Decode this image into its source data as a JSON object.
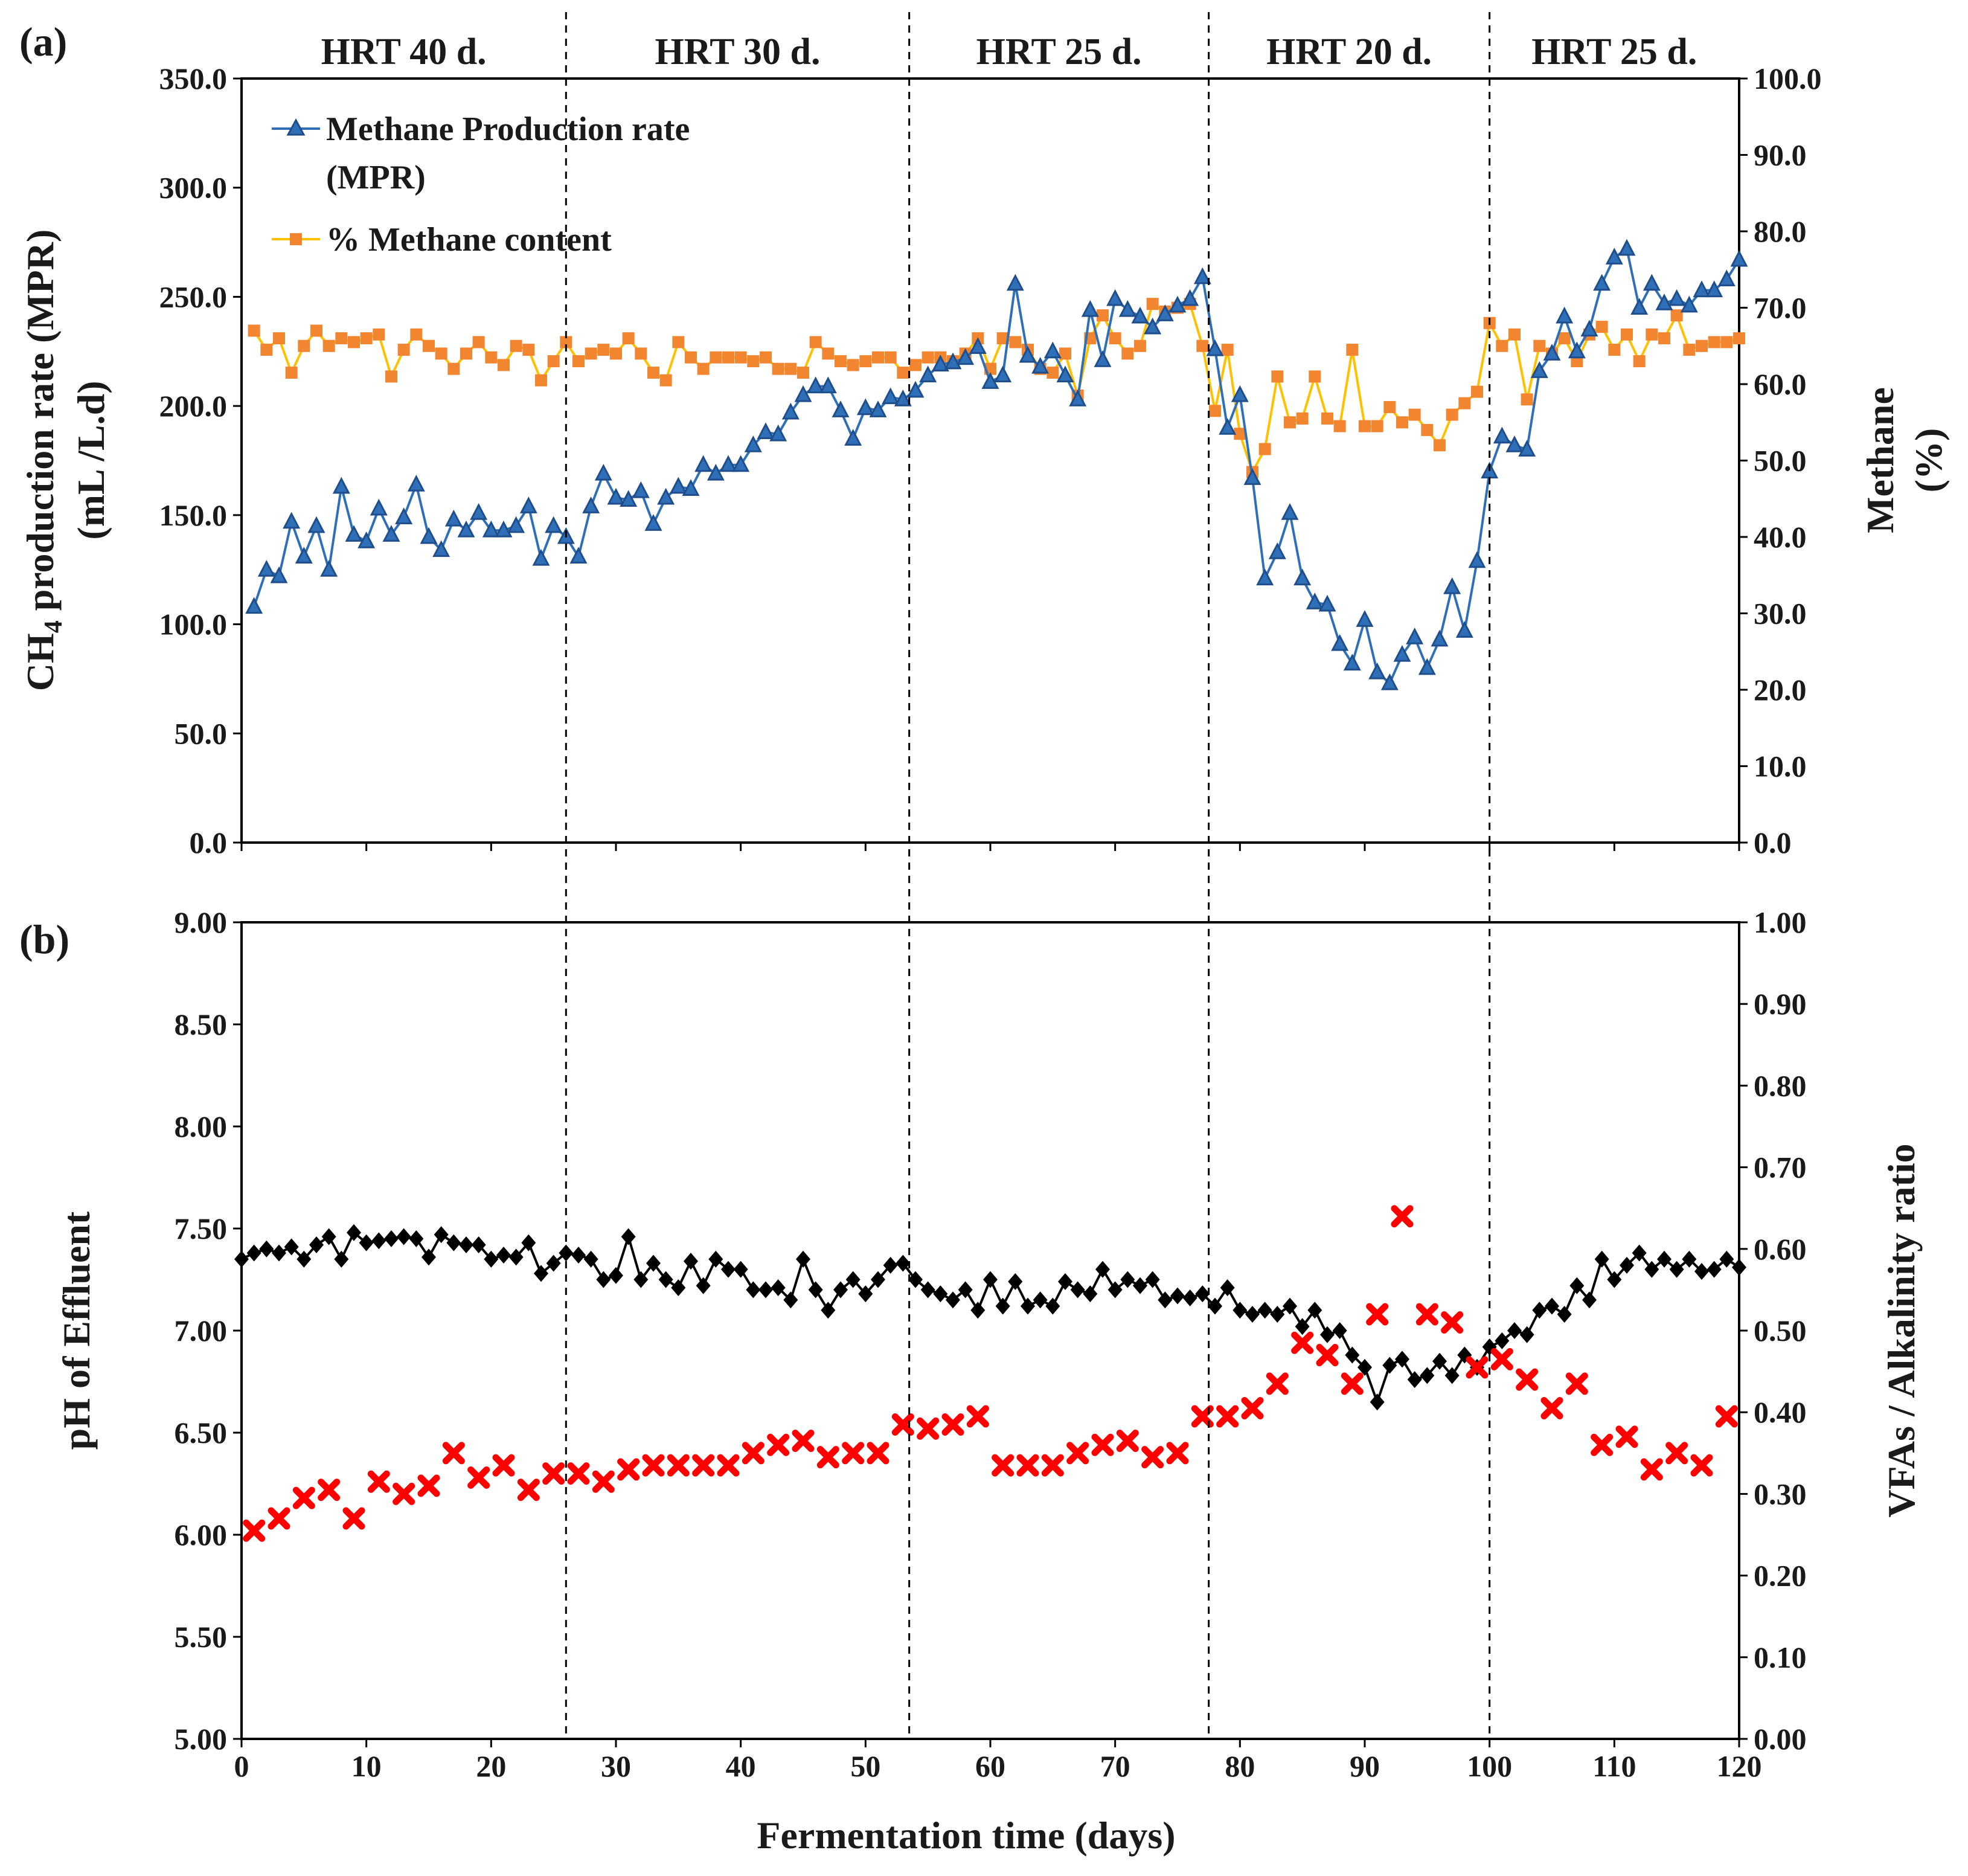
{
  "figure": {
    "shared_xlabel": "Fermentation time (days)",
    "x_ticks": [
      "0",
      "10",
      "20",
      "30",
      "40",
      "50",
      "60",
      "70",
      "80",
      "90",
      "100",
      "110",
      "120"
    ]
  },
  "hrt_periods": [
    {
      "label": "HRT 40 d.",
      "start": 0,
      "end": 26
    },
    {
      "label": "HRT 30 d.",
      "start": 26,
      "end": 53.5
    },
    {
      "label": "HRT 25 d.",
      "start": 53.5,
      "end": 77.5
    },
    {
      "label": "HRT 20 d.",
      "start": 77.5,
      "end": 100
    },
    {
      "label": "HRT 25 d.",
      "start": 100,
      "end": 120
    }
  ],
  "colors": {
    "mpr": "#2e6fb8",
    "mpr_marker": "#1f4e8a",
    "methane_line": "#ffc000",
    "methane_marker": "#f28530",
    "ph": "#000000",
    "vfa": "#ff0000"
  },
  "chart_data": [
    {
      "panel": "(a)",
      "type": "line",
      "xlabel": "Fermentation time (days)",
      "ylabel_left_main": "CH",
      "ylabel_left_sub": "4",
      "ylabel_left_rest": " production rate (MPR)",
      "ylabel_left_line2": "(mL /L.d)",
      "ylabel_right_line1": "Methane",
      "ylabel_right_line2": "(%)",
      "xlim": [
        0,
        120
      ],
      "ylim_left": [
        0,
        350
      ],
      "ylim_right": [
        0,
        100
      ],
      "yticks_left": [
        "0.0",
        "50.0",
        "100.0",
        "150.0",
        "200.0",
        "250.0",
        "300.0",
        "350.0"
      ],
      "yticks_right": [
        "0.0",
        "10.0",
        "20.0",
        "30.0",
        "40.0",
        "50.0",
        "60.0",
        "70.0",
        "80.0",
        "90.0",
        "100.0"
      ],
      "legend": {
        "position": "top-left",
        "entries": [
          "Methane Production rate",
          "(MPR)",
          "% Methane content"
        ]
      },
      "series": [
        {
          "name": "Methane Production rate (MPR)",
          "axis": "left",
          "marker": "triangle",
          "x": [
            1,
            2,
            3,
            4,
            5,
            6,
            7,
            8,
            9,
            10,
            11,
            12,
            13,
            14,
            15,
            16,
            17,
            18,
            19,
            20,
            21,
            22,
            23,
            24,
            25,
            26,
            27,
            28,
            29,
            30,
            31,
            32,
            33,
            34,
            35,
            36,
            37,
            38,
            39,
            40,
            41,
            42,
            43,
            44,
            45,
            46,
            47,
            48,
            49,
            50,
            51,
            52,
            53,
            54,
            55,
            56,
            57,
            58,
            59,
            60,
            61,
            62,
            63,
            64,
            65,
            66,
            67,
            68,
            69,
            70,
            71,
            72,
            73,
            74,
            75,
            76,
            77,
            78,
            79,
            80,
            81,
            82,
            83,
            84,
            85,
            86,
            87,
            88,
            89,
            90,
            91,
            92,
            93,
            94,
            95,
            96,
            97,
            98,
            99,
            100,
            101,
            102,
            103,
            104,
            105,
            106,
            107,
            108,
            109,
            110,
            111,
            112,
            113,
            114,
            115,
            116,
            117,
            118,
            119,
            120
          ],
          "values": [
            108,
            125,
            122,
            147,
            131,
            145,
            125,
            163,
            141,
            138,
            153,
            141,
            149,
            164,
            140,
            134,
            148,
            143,
            151,
            143,
            143,
            145,
            154,
            130,
            145,
            140,
            131,
            154,
            169,
            158,
            157,
            161,
            146,
            158,
            163,
            162,
            173,
            169,
            173,
            173,
            182,
            188,
            187,
            197,
            205,
            209,
            209,
            198,
            185,
            199,
            198,
            204,
            203,
            207,
            214,
            219,
            220,
            222,
            227,
            211,
            214,
            256,
            223,
            218,
            225,
            214,
            203,
            244,
            221,
            249,
            244,
            241,
            236,
            242,
            246,
            249,
            259,
            226,
            190,
            205,
            167,
            121,
            133,
            151,
            121,
            110,
            109,
            91,
            82,
            102,
            78,
            73,
            86,
            94,
            80,
            93,
            117,
            97,
            129,
            170,
            186,
            182,
            180,
            216,
            224,
            241,
            225,
            235,
            256,
            268,
            272,
            245,
            256,
            247,
            249,
            246,
            253,
            253,
            258,
            267
          ]
        },
        {
          "name": "% Methane content",
          "axis": "right",
          "marker": "square",
          "x": [
            1,
            2,
            3,
            4,
            5,
            6,
            7,
            8,
            9,
            10,
            11,
            12,
            13,
            14,
            15,
            16,
            17,
            18,
            19,
            20,
            21,
            22,
            23,
            24,
            25,
            26,
            27,
            28,
            29,
            30,
            31,
            32,
            33,
            34,
            35,
            36,
            37,
            38,
            39,
            40,
            41,
            42,
            43,
            44,
            45,
            46,
            47,
            48,
            49,
            50,
            51,
            52,
            53,
            54,
            55,
            56,
            57,
            58,
            59,
            60,
            61,
            62,
            63,
            64,
            65,
            66,
            67,
            68,
            69,
            70,
            71,
            72,
            73,
            74,
            75,
            76,
            77,
            78,
            79,
            80,
            81,
            82,
            83,
            84,
            85,
            86,
            87,
            88,
            89,
            90,
            91,
            92,
            93,
            94,
            95,
            96,
            97,
            98,
            99,
            100,
            101,
            102,
            103,
            104,
            105,
            106,
            107,
            108,
            109,
            110,
            111,
            112,
            113,
            114,
            115,
            116,
            117,
            118,
            119,
            120
          ],
          "values": [
            67,
            64.5,
            66,
            61.5,
            65,
            67,
            65,
            66,
            65.5,
            66,
            66.5,
            61,
            64.5,
            66.5,
            65,
            64,
            62,
            64,
            65.5,
            63.5,
            62.5,
            65,
            64.5,
            60.5,
            63,
            65.5,
            63,
            64,
            64.5,
            64,
            66,
            64,
            61.5,
            60.5,
            65.5,
            63.5,
            62,
            63.5,
            63.5,
            63.5,
            63,
            63.5,
            62,
            62,
            61.5,
            65.5,
            64,
            63,
            62.5,
            63,
            63.5,
            63.5,
            61.5,
            62.5,
            63.5,
            63.5,
            63,
            64,
            66,
            62,
            66,
            65.5,
            64.5,
            62,
            61.5,
            64,
            58.5,
            66,
            69,
            66,
            64,
            65,
            70.5,
            69.5,
            70,
            70.5,
            65,
            56.5,
            64.5,
            53.5,
            48.5,
            51.5,
            61,
            55,
            55.5,
            61,
            55.5,
            54.5,
            64.5,
            54.5,
            54.5,
            57,
            55,
            56,
            54,
            52,
            56,
            57.5,
            59,
            68,
            65,
            66.5,
            58,
            65,
            64,
            66,
            63,
            66.5,
            67.5,
            64.5,
            66.5,
            63,
            66.5,
            66,
            69,
            64.5,
            65,
            65.5,
            65.5,
            66
          ]
        }
      ]
    },
    {
      "panel": "(b)",
      "type": "line",
      "xlabel": "Fermentation time (days)",
      "ylabel_left": "pH of Effluent",
      "ylabel_right": "VFAs / Alkalinity ratio",
      "xlim": [
        0,
        120
      ],
      "ylim_left": [
        5,
        9
      ],
      "ylim_right": [
        0,
        1
      ],
      "yticks_left": [
        "5.00",
        "5.50",
        "6.00",
        "6.50",
        "7.00",
        "7.50",
        "8.00",
        "8.50",
        "9.00"
      ],
      "yticks_right": [
        "0.00",
        "0.10",
        "0.20",
        "0.30",
        "0.40",
        "0.50",
        "0.60",
        "0.70",
        "0.80",
        "0.90",
        "1.00"
      ],
      "series": [
        {
          "name": "pH of Effluent",
          "axis": "left",
          "marker": "diamond",
          "x": [
            0,
            1,
            2,
            3,
            4,
            5,
            6,
            7,
            8,
            9,
            10,
            11,
            12,
            13,
            14,
            15,
            16,
            17,
            18,
            19,
            20,
            21,
            22,
            23,
            24,
            25,
            26,
            27,
            28,
            29,
            30,
            31,
            32,
            33,
            34,
            35,
            36,
            37,
            38,
            39,
            40,
            41,
            42,
            43,
            44,
            45,
            46,
            47,
            48,
            49,
            50,
            51,
            52,
            53,
            54,
            55,
            56,
            57,
            58,
            59,
            60,
            61,
            62,
            63,
            64,
            65,
            66,
            67,
            68,
            69,
            70,
            71,
            72,
            73,
            74,
            75,
            76,
            77,
            78,
            79,
            80,
            81,
            82,
            83,
            84,
            85,
            86,
            87,
            88,
            89,
            90,
            91,
            92,
            93,
            94,
            95,
            96,
            97,
            98,
            99,
            100,
            101,
            102,
            103,
            104,
            105,
            106,
            107,
            108,
            109,
            110,
            111,
            112,
            113,
            114,
            115,
            116,
            117,
            118,
            119,
            120
          ],
          "values": [
            7.35,
            7.38,
            7.4,
            7.38,
            7.41,
            7.35,
            7.42,
            7.46,
            7.35,
            7.48,
            7.43,
            7.44,
            7.45,
            7.46,
            7.45,
            7.36,
            7.47,
            7.43,
            7.42,
            7.42,
            7.35,
            7.37,
            7.36,
            7.43,
            7.28,
            7.33,
            7.38,
            7.37,
            7.35,
            7.25,
            7.27,
            7.46,
            7.25,
            7.33,
            7.25,
            7.21,
            7.34,
            7.22,
            7.35,
            7.3,
            7.3,
            7.2,
            7.2,
            7.21,
            7.15,
            7.35,
            7.2,
            7.1,
            7.2,
            7.25,
            7.18,
            7.25,
            7.32,
            7.33,
            7.25,
            7.2,
            7.18,
            7.15,
            7.2,
            7.1,
            7.25,
            7.12,
            7.24,
            7.12,
            7.15,
            7.12,
            7.24,
            7.2,
            7.18,
            7.3,
            7.2,
            7.25,
            7.22,
            7.25,
            7.15,
            7.17,
            7.16,
            7.18,
            7.12,
            7.21,
            7.1,
            7.08,
            7.1,
            7.08,
            7.12,
            7.02,
            7.1,
            6.98,
            7.0,
            6.88,
            6.82,
            6.65,
            6.83,
            6.86,
            6.76,
            6.78,
            6.85,
            6.78,
            6.88,
            6.82,
            6.92,
            6.95,
            7.0,
            6.98,
            7.1,
            7.12,
            7.08,
            7.22,
            7.15,
            7.35,
            7.25,
            7.32,
            7.38,
            7.3,
            7.35,
            7.3,
            7.35,
            7.29,
            7.3,
            7.35,
            7.31
          ]
        },
        {
          "name": "VFAs / Alkalinity ratio",
          "axis": "right",
          "marker": "cross",
          "x": [
            1,
            3,
            5,
            7,
            9,
            11,
            13,
            15,
            17,
            19,
            21,
            23,
            25,
            27,
            29,
            31,
            33,
            35,
            37,
            39,
            41,
            43,
            45,
            47,
            49,
            51,
            53,
            55,
            57,
            59,
            61,
            63,
            65,
            67,
            69,
            71,
            73,
            75,
            77,
            79,
            81,
            83,
            85,
            87,
            89,
            91,
            93,
            95,
            97,
            99,
            101,
            103,
            105,
            107,
            109,
            111,
            113,
            115,
            117,
            119
          ],
          "values": [
            0.255,
            0.27,
            0.295,
            0.305,
            0.27,
            0.315,
            0.3,
            0.31,
            0.35,
            0.32,
            0.335,
            0.305,
            0.325,
            0.325,
            0.315,
            0.33,
            0.335,
            0.335,
            0.335,
            0.335,
            0.35,
            0.36,
            0.365,
            0.345,
            0.35,
            0.35,
            0.385,
            0.38,
            0.385,
            0.395,
            0.335,
            0.335,
            0.335,
            0.35,
            0.36,
            0.365,
            0.345,
            0.35,
            0.395,
            0.395,
            0.405,
            0.435,
            0.485,
            0.47,
            0.435,
            0.52,
            0.64,
            0.52,
            0.51,
            0.455,
            0.465,
            0.44,
            0.405,
            0.435,
            0.36,
            0.37,
            0.33,
            0.35,
            0.335,
            0.395
          ]
        }
      ]
    }
  ]
}
